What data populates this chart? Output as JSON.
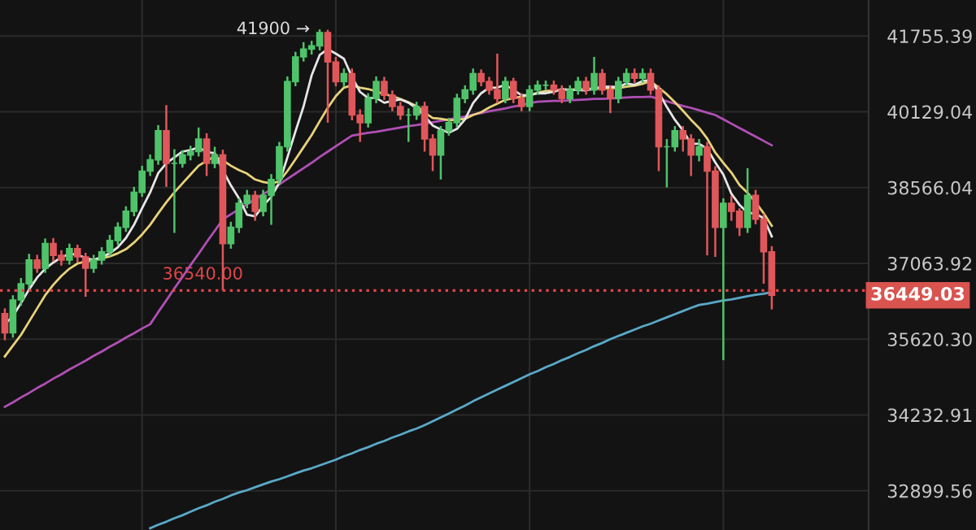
{
  "chart_data": {
    "type": "candlestick",
    "log": true,
    "grid": true,
    "ylim": [
      32230,
      42550
    ],
    "yticks": [
      {
        "value": 32899.56,
        "label": "32899.56"
      },
      {
        "value": 34232.91,
        "label": "34232.91"
      },
      {
        "value": 35620.3,
        "label": "35620.30"
      },
      {
        "value": 37063.92,
        "label": "37063.92"
      },
      {
        "value": 38566.04,
        "label": "38566.04"
      },
      {
        "value": 40129.04,
        "label": "40129.04"
      },
      {
        "value": 41755.39,
        "label": "41755.39"
      }
    ],
    "categories": [
      null,
      null,
      null,
      null,
      null,
      null,
      null,
      null,
      null,
      null,
      null,
      null,
      null,
      null,
      null,
      null,
      null,
      null,
      null,
      null,
      null,
      null,
      null,
      null,
      null,
      null,
      null,
      null,
      null,
      null,
      null,
      null,
      null,
      null,
      null,
      null,
      null,
      null,
      null,
      null,
      null,
      null,
      null,
      null,
      null,
      null,
      null,
      null,
      null,
      null,
      null,
      null,
      null,
      null,
      null,
      null,
      null,
      null,
      null,
      null,
      null,
      null,
      null,
      null,
      null,
      null,
      null,
      null,
      null,
      null,
      null,
      null,
      null,
      null,
      null,
      null,
      null,
      null,
      null,
      null,
      null,
      null,
      null,
      null,
      null,
      null,
      null,
      null,
      null,
      null,
      null,
      null,
      null,
      null,
      null,
      null
    ],
    "ohlc": [
      [
        36100,
        36200,
        35600,
        35740
      ],
      [
        35740,
        36450,
        35650,
        36360
      ],
      [
        36360,
        36780,
        36250,
        36670
      ],
      [
        36670,
        37250,
        36580,
        37130
      ],
      [
        37130,
        37230,
        36880,
        36970
      ],
      [
        36970,
        37550,
        36880,
        37450
      ],
      [
        37450,
        37560,
        37100,
        37220
      ],
      [
        37220,
        37320,
        37020,
        37130
      ],
      [
        37130,
        37450,
        37040,
        37350
      ],
      [
        37350,
        37430,
        37080,
        37190
      ],
      [
        37190,
        37270,
        36420,
        36970
      ],
      [
        36970,
        37230,
        36880,
        37130
      ],
      [
        37130,
        37380,
        37040,
        37290
      ],
      [
        37290,
        37620,
        37200,
        37510
      ],
      [
        37510,
        37870,
        37420,
        37770
      ],
      [
        37770,
        38190,
        37680,
        38090
      ],
      [
        38090,
        38580,
        37990,
        38470
      ],
      [
        38470,
        39010,
        38380,
        38900
      ],
      [
        38900,
        39240,
        38800,
        39130
      ],
      [
        39130,
        39850,
        39030,
        39730
      ],
      [
        39730,
        40270,
        38580,
        39060
      ],
      [
        39060,
        39350,
        37660,
        39060
      ],
      [
        39060,
        39330,
        38970,
        39230
      ],
      [
        39230,
        39420,
        39120,
        39300
      ],
      [
        39300,
        39800,
        39200,
        39560
      ],
      [
        39560,
        39680,
        38800,
        39060
      ],
      [
        39060,
        39400,
        38960,
        39230
      ],
      [
        39230,
        39340,
        36540,
        37450
      ],
      [
        37450,
        37880,
        37350,
        37770
      ],
      [
        37770,
        38350,
        37660,
        38250
      ],
      [
        38250,
        38520,
        38150,
        38410
      ],
      [
        38410,
        38500,
        37900,
        38090
      ],
      [
        38090,
        38520,
        37990,
        38410
      ],
      [
        38410,
        38840,
        37820,
        38730
      ],
      [
        38730,
        39500,
        38630,
        39400
      ],
      [
        39400,
        40880,
        39300,
        40770
      ],
      [
        40770,
        41410,
        40670,
        41300
      ],
      [
        41300,
        41620,
        41200,
        41470
      ],
      [
        41470,
        41650,
        41350,
        41540
      ],
      [
        41540,
        41900,
        41440,
        41830
      ],
      [
        41830,
        41890,
        39900,
        41190
      ],
      [
        41190,
        41300,
        40670,
        40770
      ],
      [
        40770,
        41050,
        40660,
        40940
      ],
      [
        40940,
        41050,
        39950,
        40060
      ],
      [
        40060,
        40180,
        39500,
        39900
      ],
      [
        39900,
        40520,
        39800,
        40410
      ],
      [
        40410,
        40880,
        40310,
        40770
      ],
      [
        40770,
        40870,
        40380,
        40480
      ],
      [
        40480,
        40580,
        40140,
        40240
      ],
      [
        40240,
        40340,
        39960,
        40060
      ],
      [
        40060,
        40200,
        39500,
        40060
      ],
      [
        40060,
        40340,
        39960,
        40240
      ],
      [
        40240,
        40340,
        39300,
        39560
      ],
      [
        39560,
        39660,
        38900,
        39230
      ],
      [
        39230,
        39830,
        38730,
        39730
      ],
      [
        39730,
        40000,
        39630,
        39900
      ],
      [
        39900,
        40510,
        39800,
        40410
      ],
      [
        40410,
        40690,
        40310,
        40590
      ],
      [
        40590,
        41050,
        40490,
        40940
      ],
      [
        40940,
        41030,
        40670,
        40770
      ],
      [
        40770,
        40870,
        40490,
        40590
      ],
      [
        40590,
        41370,
        40310,
        40410
      ],
      [
        40410,
        40870,
        40310,
        40770
      ],
      [
        40770,
        40850,
        40310,
        40410
      ],
      [
        40410,
        40520,
        40140,
        40240
      ],
      [
        40240,
        40690,
        40140,
        40590
      ],
      [
        40590,
        40790,
        40490,
        40690
      ],
      [
        40690,
        40790,
        40590,
        40690
      ],
      [
        40690,
        40790,
        40490,
        40590
      ],
      [
        40590,
        40690,
        40310,
        40410
      ],
      [
        40410,
        40690,
        40310,
        40590
      ],
      [
        40590,
        40870,
        40490,
        40770
      ],
      [
        40770,
        40870,
        40490,
        40590
      ],
      [
        40590,
        41300,
        40490,
        40940
      ],
      [
        40940,
        41040,
        40490,
        40590
      ],
      [
        40590,
        40690,
        40100,
        40410
      ],
      [
        40410,
        40870,
        40310,
        40770
      ],
      [
        40770,
        41050,
        40670,
        40940
      ],
      [
        40940,
        41050,
        40740,
        40840
      ],
      [
        40840,
        41050,
        40740,
        40940
      ],
      [
        40940,
        41050,
        40490,
        40590
      ],
      [
        40590,
        40690,
        38900,
        39400
      ],
      [
        39400,
        39560,
        38570,
        39400
      ],
      [
        39400,
        39830,
        39300,
        39730
      ],
      [
        39730,
        39830,
        39300,
        39560
      ],
      [
        39560,
        39660,
        38800,
        39230
      ],
      [
        39230,
        39560,
        39100,
        39400
      ],
      [
        39400,
        39500,
        37220,
        38900
      ],
      [
        38900,
        39000,
        37190,
        37770
      ],
      [
        37770,
        38350,
        35230,
        38250
      ],
      [
        38250,
        38400,
        37900,
        38090
      ],
      [
        38090,
        38150,
        37600,
        37770
      ],
      [
        37770,
        38960,
        37660,
        38410
      ],
      [
        38410,
        38520,
        37830,
        37930
      ],
      [
        37930,
        38050,
        36670,
        37290
      ],
      [
        37290,
        37400,
        36180,
        36449.03
      ]
    ],
    "colors": [
      "#e0575b",
      "#4fc36a",
      "#4fc36a",
      "#4fc36a",
      "#e0575b",
      "#4fc36a",
      "#e0575b",
      "#e0575b",
      "#4fc36a",
      "#e0575b",
      "#e0575b",
      "#4fc36a",
      "#4fc36a",
      "#4fc36a",
      "#4fc36a",
      "#4fc36a",
      "#4fc36a",
      "#4fc36a",
      "#4fc36a",
      "#4fc36a",
      "#e0575b",
      "#4fc36a",
      "#4fc36a",
      "#4fc36a",
      "#4fc36a",
      "#e0575b",
      "#4fc36a",
      "#e0575b",
      "#4fc36a",
      "#4fc36a",
      "#4fc36a",
      "#e0575b",
      "#4fc36a",
      "#4fc36a",
      "#4fc36a",
      "#4fc36a",
      "#4fc36a",
      "#4fc36a",
      "#4fc36a",
      "#4fc36a",
      "#e0575b",
      "#e0575b",
      "#4fc36a",
      "#e0575b",
      "#e0575b",
      "#4fc36a",
      "#4fc36a",
      "#e0575b",
      "#e0575b",
      "#e0575b",
      "#4fc36a",
      "#4fc36a",
      "#e0575b",
      "#e0575b",
      "#4fc36a",
      "#4fc36a",
      "#4fc36a",
      "#4fc36a",
      "#4fc36a",
      "#e0575b",
      "#e0575b",
      "#e0575b",
      "#4fc36a",
      "#e0575b",
      "#e0575b",
      "#4fc36a",
      "#4fc36a",
      "#4fc36a",
      "#e0575b",
      "#e0575b",
      "#4fc36a",
      "#4fc36a",
      "#e0575b",
      "#4fc36a",
      "#e0575b",
      "#e0575b",
      "#4fc36a",
      "#4fc36a",
      "#e0575b",
      "#4fc36a",
      "#e0575b",
      "#e0575b",
      "#4fc36a",
      "#4fc36a",
      "#e0575b",
      "#e0575b",
      "#4fc36a",
      "#e0575b",
      "#e0575b",
      "#4fc36a",
      "#e0575b",
      "#e0575b",
      "#4fc36a",
      "#e0575b",
      "#e0575b",
      "#e0575b"
    ],
    "series": [
      {
        "type": "line",
        "color": "#5aa9c8",
        "values": [
          null,
          null,
          null,
          null,
          null,
          null,
          null,
          null,
          null,
          null,
          null,
          null,
          null,
          null,
          null,
          null,
          null,
          null,
          32260,
          32320,
          32370,
          32430,
          32480,
          32540,
          32600,
          32650,
          32710,
          32760,
          32820,
          32870,
          32910,
          32960,
          33010,
          33060,
          33100,
          33150,
          33200,
          33250,
          33290,
          33340,
          33390,
          33440,
          33500,
          33550,
          33610,
          33660,
          33720,
          33770,
          33830,
          33880,
          33940,
          33990,
          34050,
          34120,
          34190,
          34260,
          34330,
          34400,
          34480,
          34550,
          34620,
          34690,
          34760,
          34830,
          34900,
          34970,
          35030,
          35100,
          35160,
          35230,
          35290,
          35360,
          35420,
          35490,
          35550,
          35620,
          35680,
          35740,
          35800,
          35860,
          35910,
          35970,
          36030,
          36090,
          36150,
          36210,
          36265,
          36290,
          36320,
          36350,
          36370,
          36400,
          36430,
          36460,
          36480,
          36510
        ]
      },
      {
        "type": "line",
        "color": "#b04fb5",
        "values": [
          34380,
          34460,
          34550,
          34630,
          34720,
          34800,
          34890,
          34970,
          35060,
          35140,
          35220,
          35310,
          35390,
          35480,
          35560,
          35650,
          35730,
          35820,
          35900,
          36130,
          36350,
          36580,
          36800,
          37030,
          37250,
          37480,
          37700,
          37930,
          38030,
          38130,
          38230,
          38330,
          38430,
          38530,
          38630,
          38740,
          38850,
          38960,
          39070,
          39190,
          39300,
          39410,
          39520,
          39630,
          39660,
          39690,
          39710,
          39740,
          39770,
          39800,
          39830,
          39850,
          39880,
          39910,
          39940,
          39970,
          40000,
          40030,
          40070,
          40100,
          40140,
          40170,
          40200,
          40240,
          40270,
          40310,
          40340,
          40350,
          40360,
          40360,
          40370,
          40380,
          40390,
          40400,
          40400,
          40410,
          40420,
          40430,
          40440,
          40440,
          40450,
          40400,
          40350,
          40300,
          40250,
          40210,
          40160,
          40110,
          40060,
          39970,
          39880,
          39790,
          39700,
          39610,
          39520,
          39430
        ]
      },
      {
        "type": "line",
        "color": "#e8d27a",
        "values": [
          35300,
          35500,
          35700,
          35950,
          36200,
          36450,
          36650,
          36820,
          36960,
          37060,
          37100,
          37120,
          37160,
          37200,
          37260,
          37340,
          37470,
          37630,
          37820,
          38050,
          38270,
          38470,
          38650,
          38830,
          39010,
          39110,
          39200,
          39120,
          39010,
          38920,
          38850,
          38730,
          38680,
          38650,
          38690,
          38900,
          39140,
          39390,
          39640,
          39930,
          40210,
          40460,
          40640,
          40690,
          40640,
          40610,
          40560,
          40500,
          40460,
          40400,
          40330,
          40250,
          40110,
          40000,
          39980,
          39950,
          39960,
          39980,
          40060,
          40120,
          40220,
          40300,
          40380,
          40420,
          40450,
          40480,
          40530,
          40570,
          40580,
          40590,
          40600,
          40600,
          40610,
          40620,
          40620,
          40630,
          40630,
          40660,
          40680,
          40720,
          40780,
          40640,
          40500,
          40330,
          40150,
          39960,
          39790,
          39570,
          39280,
          39070,
          38870,
          38620,
          38460,
          38270,
          38050,
          37800
        ]
      },
      {
        "type": "line",
        "color": "#e6e6e6",
        "values": [
          35900,
          36050,
          36300,
          36560,
          36790,
          36960,
          37080,
          37180,
          37250,
          37230,
          37170,
          37130,
          37190,
          37260,
          37380,
          37560,
          37820,
          38150,
          38470,
          38860,
          39060,
          39180,
          39300,
          39330,
          39390,
          39290,
          39270,
          38920,
          38610,
          38350,
          38020,
          37990,
          38200,
          38380,
          38660,
          39180,
          39720,
          40240,
          40900,
          41340,
          41470,
          41370,
          41260,
          40870,
          40550,
          40420,
          40420,
          40320,
          40360,
          40390,
          40320,
          40200,
          40040,
          39840,
          39760,
          39690,
          39770,
          39970,
          40310,
          40520,
          40640,
          40640,
          40700,
          40590,
          40480,
          40480,
          40520,
          40520,
          40550,
          40610,
          40590,
          40590,
          40580,
          40620,
          40660,
          40660,
          40650,
          40730,
          40700,
          40780,
          40800,
          40540,
          40230,
          39960,
          39740,
          39460,
          39460,
          39360,
          39080,
          38830,
          38440,
          38220,
          38060,
          38040,
          37950,
          37590
        ]
      }
    ],
    "ref_lines": [
      {
        "axis": "y",
        "value": 36540,
        "label": "36540.00",
        "color": "#e0454a",
        "line_style": "dotted"
      }
    ],
    "annotations": [
      "41900 →",
      "36449.03"
    ]
  }
}
